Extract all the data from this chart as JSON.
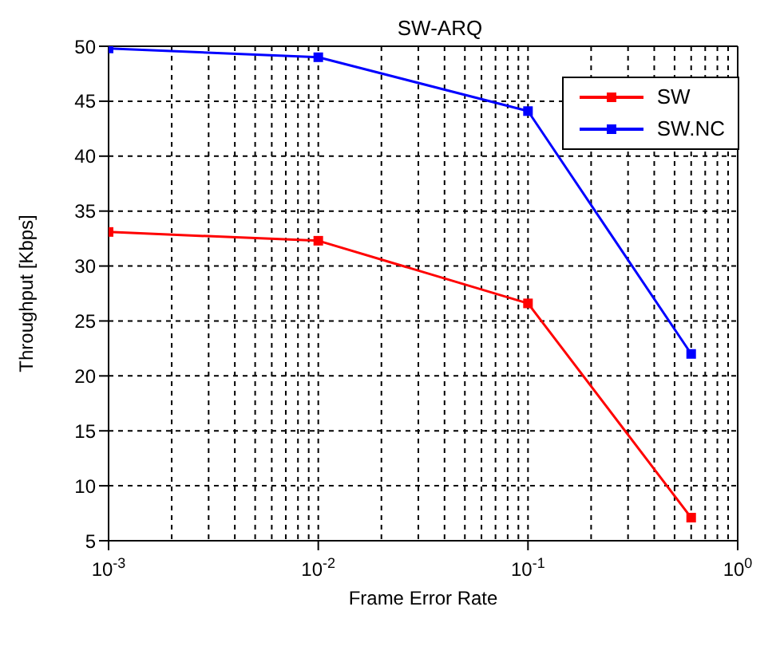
{
  "chart_data": {
    "type": "line",
    "title": "SW-ARQ",
    "xlabel": "Frame Error Rate",
    "ylabel": "Throughput [Kbps]",
    "log": "x",
    "x": [
      0.001,
      0.01,
      0.1,
      0.6
    ],
    "series": [
      {
        "name": "SW",
        "color": "#ff0000",
        "values": [
          33.1,
          32.3,
          26.6,
          7.1
        ]
      },
      {
        "name": "SW.NC",
        "color": "#0000ff",
        "values": [
          49.8,
          49,
          44.1,
          22
        ]
      }
    ],
    "xlim": [
      0.001,
      1
    ],
    "xticks": [
      {
        "value": 0.001,
        "label": "10$^{-3}$"
      },
      {
        "value": 0.01,
        "label": "10$^{-2}$"
      },
      {
        "value": 0.1,
        "label": "10$^{-1}$"
      },
      {
        "value": 1,
        "label": "10$^{0}$"
      }
    ],
    "ylim": [
      5,
      50
    ],
    "yticks": [
      5,
      10,
      15,
      20,
      25,
      30,
      35,
      40,
      45,
      50
    ],
    "grid": true,
    "legend": "top right",
    "marker": "square",
    "line_style": "solid"
  }
}
